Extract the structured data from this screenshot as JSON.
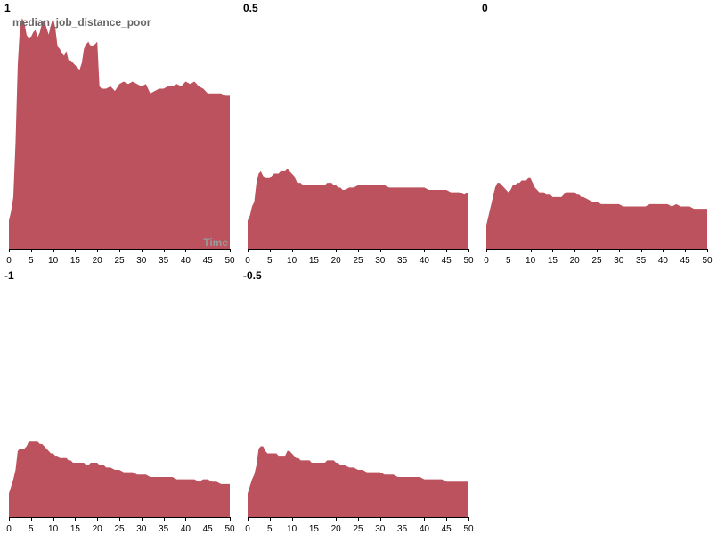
{
  "chart_data": {
    "type": "area",
    "layout": "small-multiples",
    "ylabel": "median_job_distance_poor",
    "xlabel": "Time",
    "xlim": [
      0,
      50
    ],
    "ylim": [
      0,
      100
    ],
    "x_ticks": [
      0,
      5,
      10,
      15,
      20,
      25,
      30,
      35,
      40,
      45,
      50
    ],
    "x_tick_labels": [
      "0",
      "5",
      "10",
      "15",
      "20",
      "25",
      "30",
      "35",
      "40",
      "45",
      "50"
    ],
    "grid": false,
    "fill_color": "#bc525d",
    "x": [
      0,
      0.5,
      1,
      1.5,
      2,
      2.5,
      3,
      3.5,
      4,
      4.5,
      5,
      5.5,
      6,
      6.5,
      7,
      7.5,
      8,
      8.5,
      9,
      9.5,
      10,
      10.5,
      11,
      11.5,
      12,
      12.5,
      13,
      13.5,
      14,
      14.5,
      15,
      15.5,
      16,
      16.5,
      17,
      17.5,
      18,
      18.5,
      19,
      19.5,
      20,
      20.5,
      21,
      21.5,
      22,
      23,
      24,
      25,
      26,
      27,
      28,
      29,
      30,
      31,
      32,
      33,
      34,
      35,
      36,
      37,
      38,
      39,
      40,
      41,
      42,
      43,
      44,
      45,
      46,
      47,
      48,
      49,
      50
    ],
    "series": [
      {
        "name": "1",
        "values": [
          12,
          16,
          22,
          45,
          78,
          94,
          98,
          96,
          91,
          89,
          90,
          92,
          93,
          90,
          92,
          96,
          97,
          94,
          91,
          95,
          98,
          94,
          86,
          85,
          83,
          82,
          84,
          80,
          80,
          79,
          78,
          77,
          76,
          79,
          85,
          87,
          88,
          86,
          86,
          87,
          88,
          69,
          68,
          68,
          68,
          69,
          67,
          70,
          71,
          70,
          71,
          70,
          69,
          70,
          66,
          67,
          68,
          68,
          69,
          69,
          70,
          69,
          71,
          70,
          71,
          69,
          68,
          66,
          66,
          66,
          66,
          65,
          65
        ]
      },
      {
        "name": "0.5",
        "values": [
          12,
          14,
          18,
          20,
          28,
          32,
          33,
          31,
          30,
          30,
          30,
          31,
          32,
          32,
          32,
          33,
          33,
          33,
          34,
          33,
          32,
          31,
          29,
          28,
          28,
          27,
          27,
          27,
          27,
          27,
          27,
          27,
          27,
          27,
          27,
          27,
          28,
          28,
          28,
          27,
          27,
          26,
          26,
          25,
          25,
          26,
          26,
          27,
          27,
          27,
          27,
          27,
          27,
          27,
          26,
          26,
          26,
          26,
          26,
          26,
          26,
          26,
          26,
          25,
          25,
          25,
          25,
          25,
          24,
          24,
          24,
          23,
          24
        ]
      },
      {
        "name": "0",
        "values": [
          10,
          14,
          18,
          22,
          26,
          28,
          28,
          27,
          26,
          25,
          24,
          25,
          27,
          27,
          28,
          28,
          29,
          29,
          29,
          30,
          30,
          28,
          26,
          25,
          24,
          24,
          24,
          23,
          23,
          23,
          22,
          22,
          22,
          22,
          22,
          23,
          24,
          24,
          24,
          24,
          24,
          23,
          23,
          22,
          22,
          21,
          20,
          20,
          19,
          19,
          19,
          19,
          19,
          18,
          18,
          18,
          18,
          18,
          18,
          19,
          19,
          19,
          19,
          19,
          18,
          19,
          18,
          18,
          18,
          17,
          17,
          17,
          17
        ]
      },
      {
        "name": "-1",
        "values": [
          10,
          13,
          16,
          20,
          28,
          29,
          29,
          29,
          30,
          32,
          32,
          32,
          32,
          32,
          31,
          31,
          30,
          29,
          28,
          27,
          27,
          26,
          26,
          25,
          25,
          25,
          25,
          24,
          24,
          23,
          23,
          23,
          23,
          23,
          23,
          22,
          22,
          23,
          23,
          23,
          23,
          22,
          22,
          22,
          21,
          21,
          20,
          20,
          19,
          19,
          19,
          18,
          18,
          18,
          17,
          17,
          17,
          17,
          17,
          17,
          16,
          16,
          16,
          16,
          16,
          15,
          16,
          16,
          15,
          15,
          14,
          14,
          14
        ]
      },
      {
        "name": "-0.5",
        "values": [
          10,
          13,
          16,
          18,
          22,
          29,
          30,
          30,
          28,
          27,
          27,
          27,
          27,
          27,
          26,
          26,
          26,
          26,
          28,
          28,
          27,
          26,
          25,
          25,
          24,
          24,
          24,
          24,
          24,
          23,
          23,
          23,
          23,
          23,
          23,
          23,
          24,
          24,
          24,
          24,
          23,
          23,
          22,
          22,
          22,
          21,
          21,
          20,
          20,
          19,
          19,
          19,
          19,
          18,
          18,
          18,
          17,
          17,
          17,
          17,
          17,
          17,
          16,
          16,
          16,
          16,
          16,
          15,
          15,
          15,
          15,
          15,
          15
        ]
      }
    ]
  }
}
